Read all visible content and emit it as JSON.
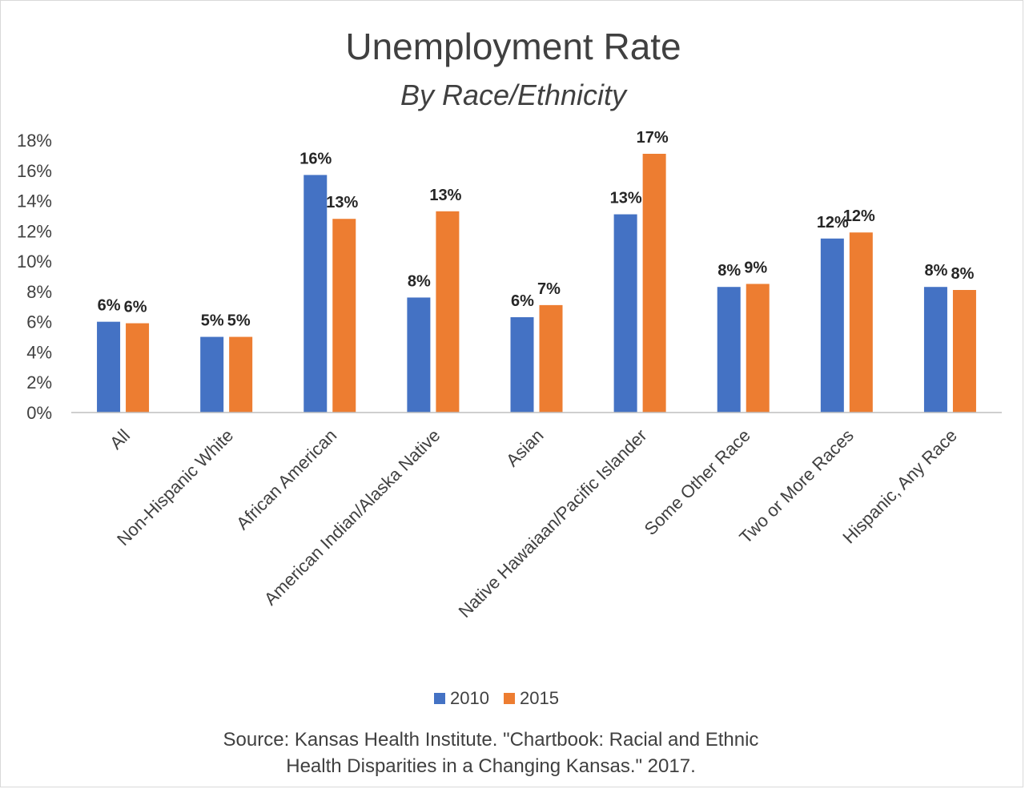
{
  "chart_data": {
    "type": "bar",
    "title": "Unemployment Rate",
    "subtitle": "By Race/Ethnicity",
    "xlabel": "",
    "ylabel": "",
    "ylim": [
      0,
      18
    ],
    "yticks": [
      "0%",
      "2%",
      "4%",
      "6%",
      "8%",
      "10%",
      "12%",
      "14%",
      "16%",
      "18%"
    ],
    "grid": false,
    "legend_position": "bottom",
    "categories": [
      "All",
      "Non-Hispanic White",
      "African American",
      "American Indian/Alaska Native",
      "Asian",
      "Native Hawaiaan/Pacific Islander",
      "Some Other Race",
      "Two or More Races",
      "Hispanic, Any Race"
    ],
    "series": [
      {
        "name": "2010",
        "color": "#4472c4",
        "values": [
          6.0,
          5.0,
          15.7,
          7.6,
          6.3,
          13.1,
          8.3,
          11.5,
          8.3
        ],
        "labels": [
          "6%",
          "5%",
          "16%",
          "8%",
          "6%",
          "13%",
          "8%",
          "12%",
          "8%"
        ]
      },
      {
        "name": "2015",
        "color": "#ed7d31",
        "values": [
          5.9,
          5.0,
          12.8,
          13.3,
          7.1,
          17.1,
          8.5,
          11.9,
          8.1
        ],
        "labels": [
          "6%",
          "5%",
          "13%",
          "13%",
          "7%",
          "17%",
          "9%",
          "12%",
          "8%"
        ]
      }
    ]
  },
  "source": {
    "line1": "Source: Kansas Health Institute. \"Chartbook: Racial and Ethnic",
    "line2": "Health Disparities in a Changing Kansas.\" 2017."
  }
}
